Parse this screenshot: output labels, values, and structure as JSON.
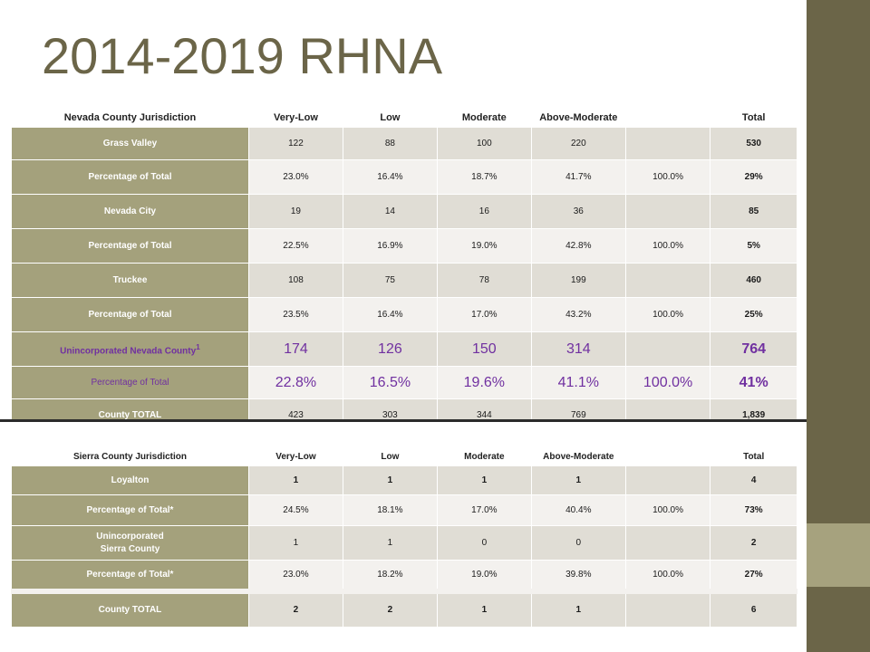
{
  "title": "2014-2019 RHNA",
  "nevada": {
    "headers": [
      "Nevada County Jurisdiction",
      "Very-Low",
      "Low",
      "Moderate",
      "Above-Moderate",
      "",
      "Total"
    ],
    "rows": [
      {
        "label": "Grass Valley",
        "cells": [
          "122",
          "88",
          "100",
          "220",
          "",
          "530"
        ]
      },
      {
        "label": "Percentage of Total",
        "cells": [
          "23.0%",
          "16.4%",
          "18.7%",
          "41.7%",
          "100.0%",
          "29%"
        ]
      },
      {
        "label": "Nevada City",
        "cells": [
          "19",
          "14",
          "16",
          "36",
          "",
          "85"
        ]
      },
      {
        "label": "Percentage of Total",
        "cells": [
          "22.5%",
          "16.9%",
          "19.0%",
          "42.8%",
          "100.0%",
          "5%"
        ]
      },
      {
        "label": "Truckee",
        "cells": [
          "108",
          "75",
          "78",
          "199",
          "",
          "460"
        ]
      },
      {
        "label": "Percentage of Total",
        "cells": [
          "23.5%",
          "16.4%",
          "17.0%",
          "43.2%",
          "100.0%",
          "25%"
        ]
      },
      {
        "label": "Unincorporated Nevada County",
        "label_sup": "1",
        "cells": [
          "174",
          "126",
          "150",
          "314",
          "",
          "764"
        ]
      },
      {
        "label": "Percentage of Total",
        "cells": [
          "22.8%",
          "16.5%",
          "19.6%",
          "41.1%",
          "100.0%",
          "41%"
        ]
      },
      {
        "label": "County TOTAL",
        "cells": [
          "423",
          "303",
          "344",
          "769",
          "",
          "1,839"
        ]
      }
    ]
  },
  "sierra": {
    "headers": [
      "Sierra County Jurisdiction",
      "Very-Low",
      "Low",
      "Moderate",
      "Above-Moderate",
      "",
      "Total"
    ],
    "rows": [
      {
        "label": "Loyalton",
        "cells": [
          "1",
          "1",
          "1",
          "1",
          "",
          "4"
        ]
      },
      {
        "label": "Percentage of Total*",
        "cells": [
          "24.5%",
          "18.1%",
          "17.0%",
          "40.4%",
          "100.0%",
          "73%"
        ]
      },
      {
        "label": "Unincorporated",
        "label2": "Sierra County",
        "cells": [
          "1",
          "1",
          "0",
          "0",
          "",
          "2"
        ]
      },
      {
        "label": "Percentage of Total*",
        "cells": [
          "23.0%",
          "18.2%",
          "19.0%",
          "39.8%",
          "100.0%",
          "27%"
        ]
      },
      {
        "label": "County TOTAL",
        "cells": [
          "2",
          "2",
          "1",
          "1",
          "",
          "6"
        ]
      }
    ]
  },
  "colors": {
    "title": "#6b6548",
    "label_fill": "#a4a17c",
    "cell_fill": "#e0ddd5",
    "cell_fill_light": "#f3f1ee",
    "highlight_text": "#7030a0",
    "sidebar_dark": "#6b6548",
    "sidebar_light": "#a6a27e"
  }
}
